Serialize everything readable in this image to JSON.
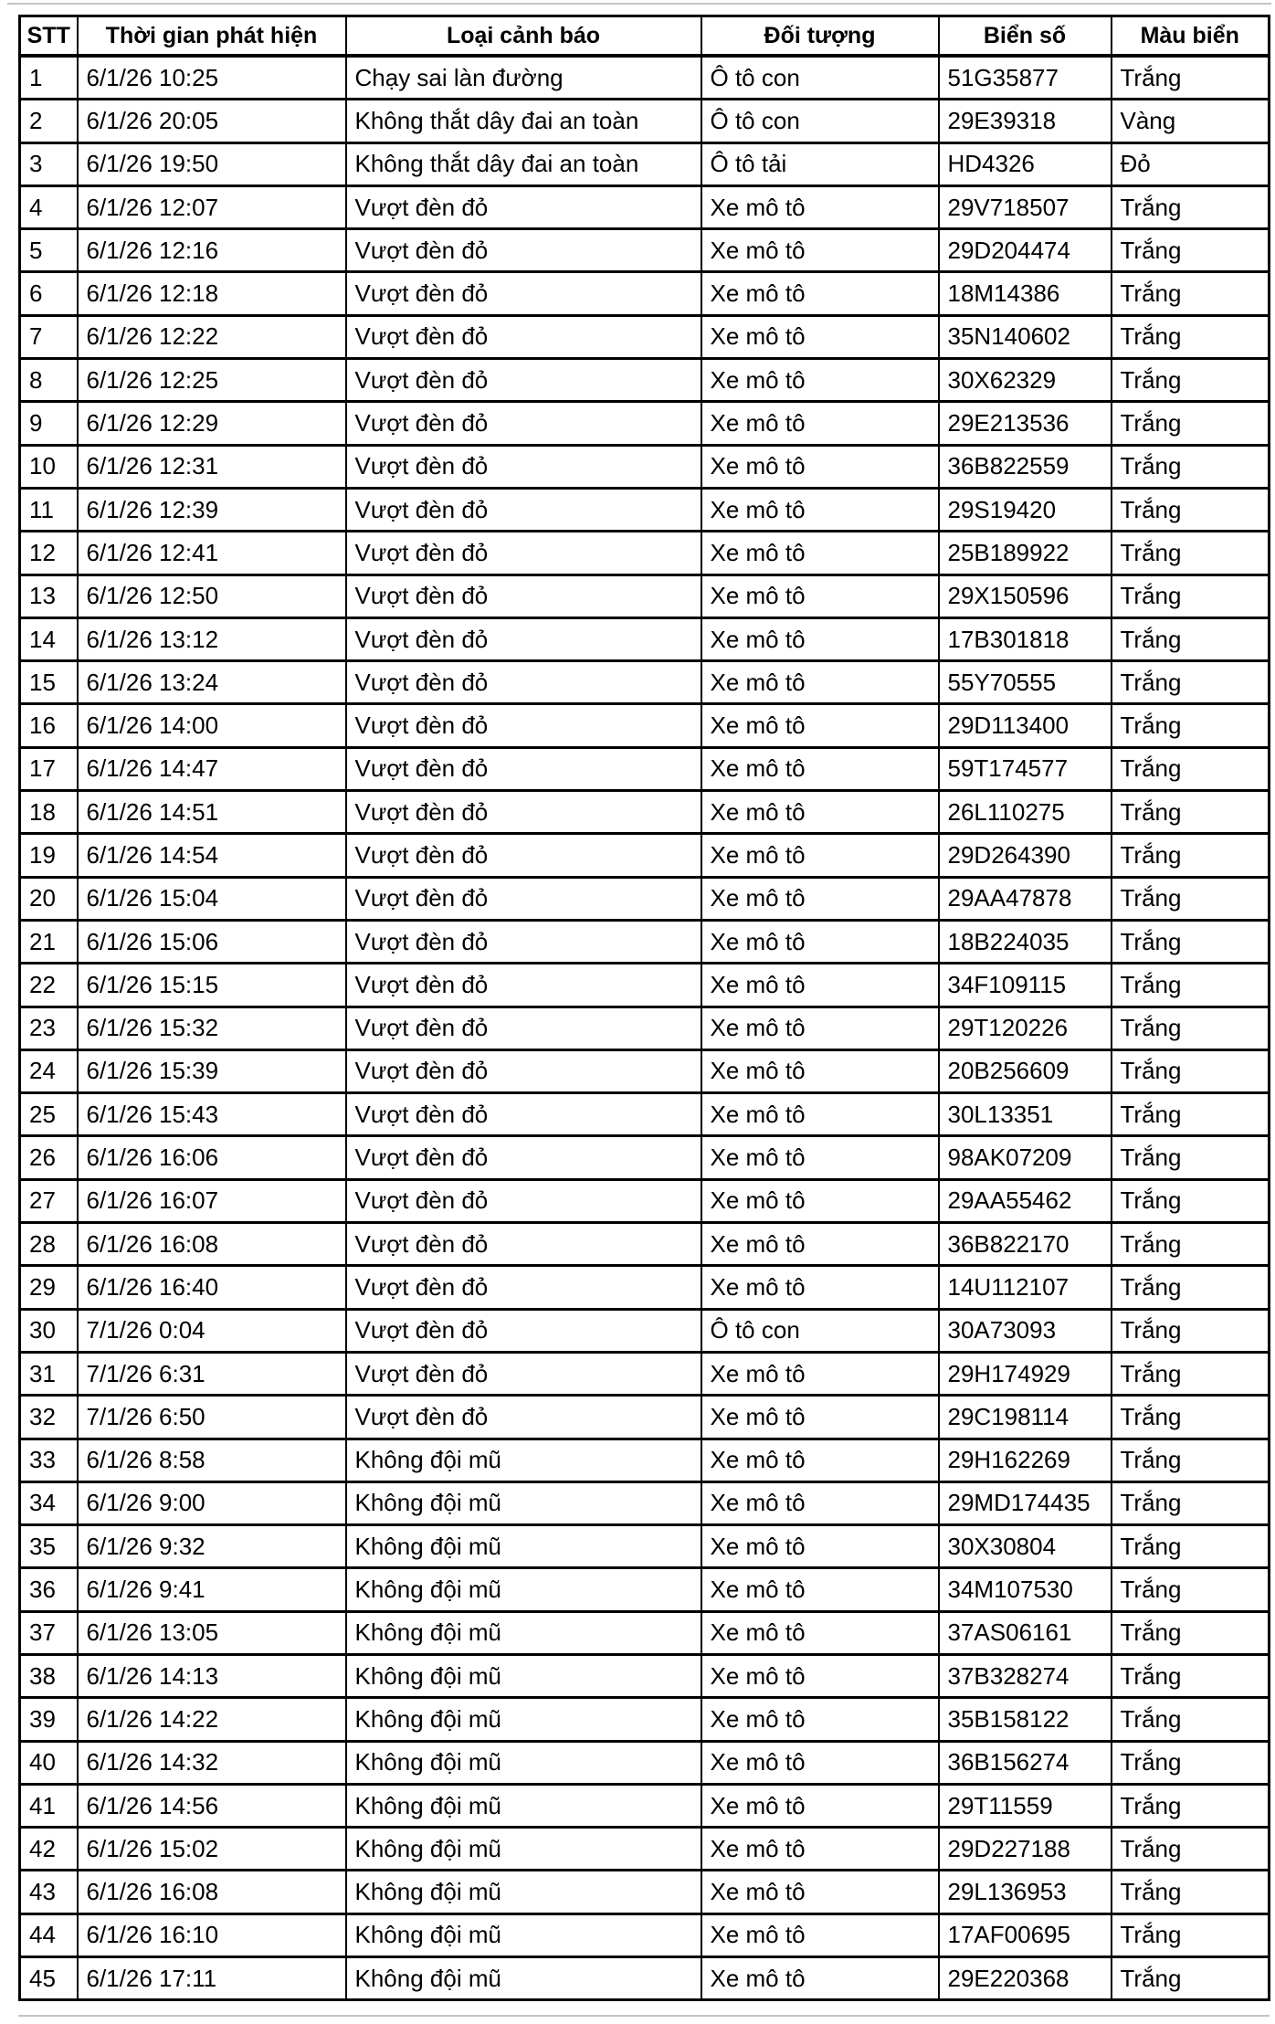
{
  "colors": {
    "border": "#000000",
    "text": "#000000",
    "background": "#ffffff",
    "hairline": "#c4c4c4"
  },
  "table": {
    "columns": [
      {
        "key": "stt",
        "label": "STT"
      },
      {
        "key": "time",
        "label": "Thời gian phát hiện"
      },
      {
        "key": "type",
        "label": "Loại cảnh báo"
      },
      {
        "key": "object",
        "label": "Đối tượng"
      },
      {
        "key": "plate",
        "label": "Biển số"
      },
      {
        "key": "color",
        "label": "Màu biển"
      }
    ],
    "rows": [
      [
        "1",
        "6/1/26 10:25",
        "Chạy sai làn đường",
        "Ô tô con",
        "51G35877",
        "Trắng"
      ],
      [
        "2",
        "6/1/26 20:05",
        "Không thắt dây đai an toàn",
        "Ô tô con",
        "29E39318",
        "Vàng"
      ],
      [
        "3",
        "6/1/26 19:50",
        "Không thắt dây đai an toàn",
        "Ô tô tải",
        "HD4326",
        "Đỏ"
      ],
      [
        "4",
        "6/1/26 12:07",
        "Vượt đèn đỏ",
        "Xe mô tô",
        "29V718507",
        "Trắng"
      ],
      [
        "5",
        "6/1/26 12:16",
        "Vượt đèn đỏ",
        "Xe mô tô",
        "29D204474",
        "Trắng"
      ],
      [
        "6",
        "6/1/26 12:18",
        "Vượt đèn đỏ",
        "Xe mô tô",
        "18M14386",
        "Trắng"
      ],
      [
        "7",
        "6/1/26 12:22",
        "Vượt đèn đỏ",
        "Xe mô tô",
        "35N140602",
        "Trắng"
      ],
      [
        "8",
        "6/1/26 12:25",
        "Vượt đèn đỏ",
        "Xe mô tô",
        "30X62329",
        "Trắng"
      ],
      [
        "9",
        "6/1/26 12:29",
        "Vượt đèn đỏ",
        "Xe mô tô",
        "29E213536",
        "Trắng"
      ],
      [
        "10",
        "6/1/26 12:31",
        "Vượt đèn đỏ",
        "Xe mô tô",
        "36B822559",
        "Trắng"
      ],
      [
        "11",
        "6/1/26 12:39",
        "Vượt đèn đỏ",
        "Xe mô tô",
        "29S19420",
        "Trắng"
      ],
      [
        "12",
        "6/1/26 12:41",
        "Vượt đèn đỏ",
        "Xe mô tô",
        "25B189922",
        "Trắng"
      ],
      [
        "13",
        "6/1/26 12:50",
        "Vượt đèn đỏ",
        "Xe mô tô",
        "29X150596",
        "Trắng"
      ],
      [
        "14",
        "6/1/26 13:12",
        "Vượt đèn đỏ",
        "Xe mô tô",
        "17B301818",
        "Trắng"
      ],
      [
        "15",
        "6/1/26 13:24",
        "Vượt đèn đỏ",
        "Xe mô tô",
        "55Y70555",
        "Trắng"
      ],
      [
        "16",
        "6/1/26 14:00",
        "Vượt đèn đỏ",
        "Xe mô tô",
        "29D113400",
        "Trắng"
      ],
      [
        "17",
        "6/1/26 14:47",
        "Vượt đèn đỏ",
        "Xe mô tô",
        "59T174577",
        "Trắng"
      ],
      [
        "18",
        "6/1/26 14:51",
        "Vượt đèn đỏ",
        "Xe mô tô",
        "26L110275",
        "Trắng"
      ],
      [
        "19",
        "6/1/26 14:54",
        "Vượt đèn đỏ",
        "Xe mô tô",
        "29D264390",
        "Trắng"
      ],
      [
        "20",
        "6/1/26 15:04",
        "Vượt đèn đỏ",
        "Xe mô tô",
        "29AA47878",
        "Trắng"
      ],
      [
        "21",
        "6/1/26 15:06",
        "Vượt đèn đỏ",
        "Xe mô tô",
        "18B224035",
        "Trắng"
      ],
      [
        "22",
        "6/1/26 15:15",
        "Vượt đèn đỏ",
        "Xe mô tô",
        "34F109115",
        "Trắng"
      ],
      [
        "23",
        "6/1/26 15:32",
        "Vượt đèn đỏ",
        "Xe mô tô",
        "29T120226",
        "Trắng"
      ],
      [
        "24",
        "6/1/26 15:39",
        "Vượt đèn đỏ",
        "Xe mô tô",
        "20B256609",
        "Trắng"
      ],
      [
        "25",
        "6/1/26 15:43",
        "Vượt đèn đỏ",
        "Xe mô tô",
        "30L13351",
        "Trắng"
      ],
      [
        "26",
        "6/1/26 16:06",
        "Vượt đèn đỏ",
        "Xe mô tô",
        "98AK07209",
        "Trắng"
      ],
      [
        "27",
        "6/1/26 16:07",
        "Vượt đèn đỏ",
        "Xe mô tô",
        "29AA55462",
        "Trắng"
      ],
      [
        "28",
        "6/1/26 16:08",
        "Vượt đèn đỏ",
        "Xe mô tô",
        "36B822170",
        "Trắng"
      ],
      [
        "29",
        "6/1/26 16:40",
        "Vượt đèn đỏ",
        "Xe mô tô",
        "14U112107",
        "Trắng"
      ],
      [
        "30",
        "7/1/26 0:04",
        "Vượt đèn đỏ",
        "Ô tô con",
        "30A73093",
        "Trắng"
      ],
      [
        "31",
        "7/1/26 6:31",
        "Vượt đèn đỏ",
        "Xe mô tô",
        "29H174929",
        "Trắng"
      ],
      [
        "32",
        "7/1/26 6:50",
        "Vượt đèn đỏ",
        "Xe mô tô",
        "29C198114",
        "Trắng"
      ],
      [
        "33",
        "6/1/26 8:58",
        "Không đội mũ",
        "Xe mô tô",
        "29H162269",
        "Trắng"
      ],
      [
        "34",
        "6/1/26 9:00",
        "Không đội mũ",
        "Xe mô tô",
        "29MD174435",
        "Trắng"
      ],
      [
        "35",
        "6/1/26 9:32",
        "Không đội mũ",
        "Xe mô tô",
        "30X30804",
        "Trắng"
      ],
      [
        "36",
        "6/1/26 9:41",
        "Không đội mũ",
        "Xe mô tô",
        "34M107530",
        "Trắng"
      ],
      [
        "37",
        "6/1/26 13:05",
        "Không đội mũ",
        "Xe mô tô",
        "37AS06161",
        "Trắng"
      ],
      [
        "38",
        "6/1/26 14:13",
        "Không đội mũ",
        "Xe mô tô",
        "37B328274",
        "Trắng"
      ],
      [
        "39",
        "6/1/26 14:22",
        "Không đội mũ",
        "Xe mô tô",
        "35B158122",
        "Trắng"
      ],
      [
        "40",
        "6/1/26 14:32",
        "Không đội mũ",
        "Xe mô tô",
        "36B156274",
        "Trắng"
      ],
      [
        "41",
        "6/1/26 14:56",
        "Không đội mũ",
        "Xe mô tô",
        "29T11559",
        "Trắng"
      ],
      [
        "42",
        "6/1/26 15:02",
        "Không đội mũ",
        "Xe mô tô",
        "29D227188",
        "Trắng"
      ],
      [
        "43",
        "6/1/26 16:08",
        "Không đội mũ",
        "Xe mô tô",
        "29L136953",
        "Trắng"
      ],
      [
        "44",
        "6/1/26 16:10",
        "Không đội mũ",
        "Xe mô tô",
        "17AF00695",
        "Trắng"
      ],
      [
        "45",
        "6/1/26 17:11",
        "Không đội mũ",
        "Xe mô tô",
        "29E220368",
        "Trắng"
      ]
    ]
  }
}
